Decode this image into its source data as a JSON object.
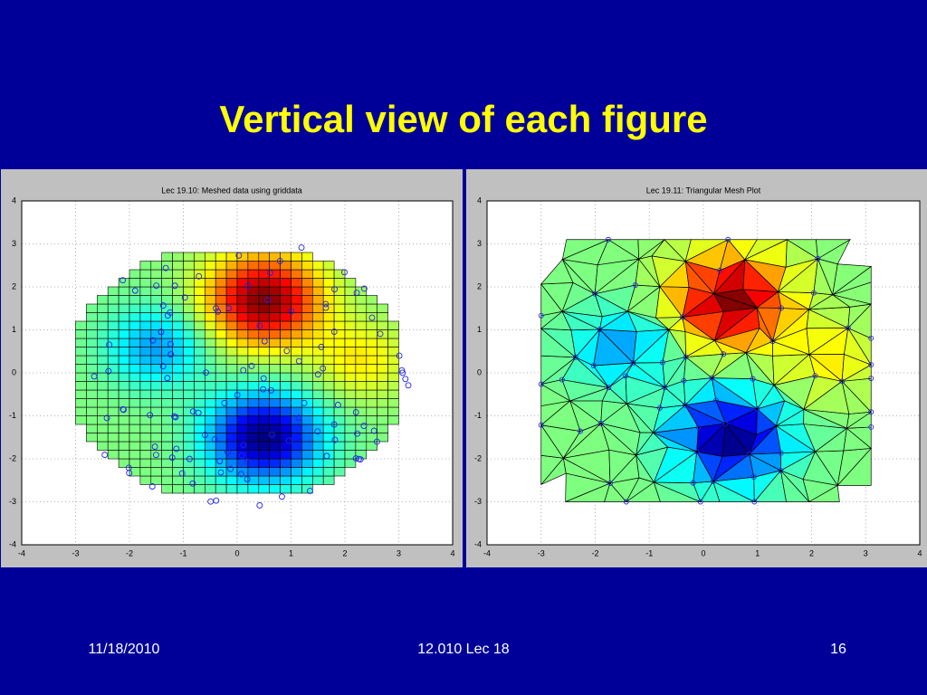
{
  "slide": {
    "title": "Vertical view of each figure",
    "footer": {
      "date": "11/18/2010",
      "course": "12.010 Lec 18",
      "page": "16"
    }
  },
  "chart_data": [
    {
      "type": "heatmap",
      "title": "Lec 19.10: Meshed data using griddata",
      "xlim": [
        -4,
        4
      ],
      "ylim": [
        -4,
        4
      ],
      "xticks": [
        -4,
        -3,
        -2,
        -1,
        0,
        1,
        2,
        3,
        4
      ],
      "yticks": [
        -4,
        -3,
        -2,
        -1,
        0,
        1,
        2,
        3,
        4
      ],
      "grid": true
    },
    {
      "type": "trimesh",
      "title": "Lec 19.11: Triangular Mesh Plot",
      "xlim": [
        -4,
        4
      ],
      "ylim": [
        -4,
        4
      ],
      "xticks": [
        -4,
        -3,
        -2,
        -1,
        0,
        1,
        2,
        3,
        4
      ],
      "yticks": [
        -4,
        -3,
        -2,
        -1,
        0,
        1,
        2,
        3,
        4
      ],
      "grid": true
    }
  ]
}
